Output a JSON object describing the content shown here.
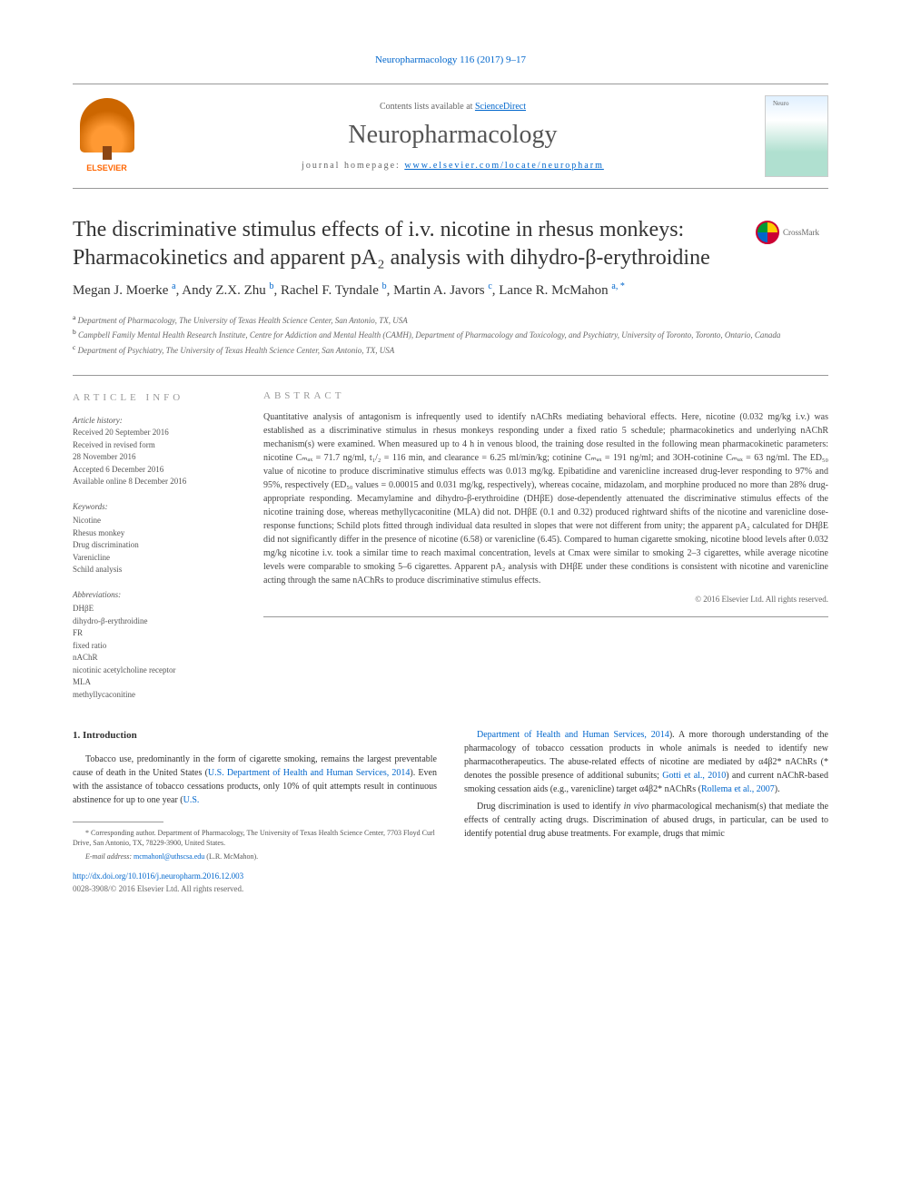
{
  "top_link": "Neuropharmacology 116 (2017) 9–17",
  "header": {
    "contents_text": "Contents lists available at ",
    "contents_link": "ScienceDirect",
    "journal_name": "Neuropharmacology",
    "homepage_prefix": "journal homepage: ",
    "homepage_url": "www.elsevier.com/locate/neuropharm",
    "elsevier_label": "ELSEVIER"
  },
  "crossmark": "CrossMark",
  "title": "The discriminative stimulus effects of i.v. nicotine in rhesus monkeys: Pharmacokinetics and apparent pA₂ analysis with dihydro-β-erythroidine",
  "authors_html": "Megan J. Moerke <sup>a</sup>, Andy Z.X. Zhu <sup>b</sup>, Rachel F. Tyndale <sup>b</sup>, Martin A. Javors <sup>c</sup>, Lance R. McMahon <sup>a, *</sup>",
  "affiliations": [
    {
      "sup": "a",
      "text": " Department of Pharmacology, The University of Texas Health Science Center, San Antonio, TX, USA"
    },
    {
      "sup": "b",
      "text": " Campbell Family Mental Health Research Institute, Centre for Addiction and Mental Health (CAMH), Department of Pharmacology and Toxicology, and Psychiatry, University of Toronto, Toronto, Ontario, Canada"
    },
    {
      "sup": "c",
      "text": " Department of Psychiatry, The University of Texas Health Science Center, San Antonio, TX, USA"
    }
  ],
  "article_info": {
    "label": "ARTICLE INFO",
    "history_label": "Article history:",
    "history": [
      "Received 20 September 2016",
      "Received in revised form",
      "28 November 2016",
      "Accepted 6 December 2016",
      "Available online 8 December 2016"
    ],
    "keywords_label": "Keywords:",
    "keywords": [
      "Nicotine",
      "Rhesus monkey",
      "Drug discrimination",
      "Varenicline",
      "Schild analysis"
    ],
    "abbrev_label": "Abbreviations:",
    "abbrevs": [
      "DHβE",
      "dihydro-β-erythroidine",
      "FR",
      "fixed ratio",
      "nAChR",
      "nicotinic acetylcholine receptor",
      "MLA",
      "methyllycaconitine"
    ]
  },
  "abstract": {
    "label": "ABSTRACT",
    "text": "Quantitative analysis of antagonism is infrequently used to identify nAChRs mediating behavioral effects. Here, nicotine (0.032 mg/kg i.v.) was established as a discriminative stimulus in rhesus monkeys responding under a fixed ratio 5 schedule; pharmacokinetics and underlying nAChR mechanism(s) were examined. When measured up to 4 h in venous blood, the training dose resulted in the following mean pharmacokinetic parameters: nicotine Cₘₐₓ = 71.7 ng/ml, t₁/₂ = 116 min, and clearance = 6.25 ml/min/kg; cotinine Cₘₐₓ = 191 ng/ml; and 3OH-cotinine Cₘₐₓ = 63 ng/ml. The ED₅₀ value of nicotine to produce discriminative stimulus effects was 0.013 mg/kg. Epibatidine and varenicline increased drug-lever responding to 97% and 95%, respectively (ED₅₀ values = 0.00015 and 0.031 mg/kg, respectively), whereas cocaine, midazolam, and morphine produced no more than 28% drug-appropriate responding. Mecamylamine and dihydro-β-erythroidine (DHβE) dose-dependently attenuated the discriminative stimulus effects of the nicotine training dose, whereas methyllycaconitine (MLA) did not. DHβE (0.1 and 0.32) produced rightward shifts of the nicotine and varenicline dose-response functions; Schild plots fitted through individual data resulted in slopes that were not different from unity; the apparent pA₂ calculated for DHβE did not significantly differ in the presence of nicotine (6.58) or varenicline (6.45). Compared to human cigarette smoking, nicotine blood levels after 0.032 mg/kg nicotine i.v. took a similar time to reach maximal concentration, levels at Cmax were similar to smoking 2–3 cigarettes, while average nicotine levels were comparable to smoking 5–6 cigarettes. Apparent pA₂ analysis with DHβE under these conditions is consistent with nicotine and varenicline acting through the same nAChRs to produce discriminative stimulus effects.",
    "copyright": "© 2016 Elsevier Ltd. All rights reserved."
  },
  "body": {
    "intro_heading": "1. Introduction",
    "left_paras": [
      "Tobacco use, predominantly in the form of cigarette smoking, remains the largest preventable cause of death in the United States (U.S. Department of Health and Human Services, 2014). Even with the assistance of tobacco cessations products, only 10% of quit attempts result in continuous abstinence for up to one year (U.S."
    ],
    "right_paras": [
      "Department of Health and Human Services, 2014). A more thorough understanding of the pharmacology of tobacco cessation products in whole animals is needed to identify new pharmacotherapeutics. The abuse-related effects of nicotine are mediated by α4β2* nAChRs (* denotes the possible presence of additional subunits; Gotti et al., 2010) and current nAChR-based smoking cessation aids (e.g., varenicline) target α4β2* nAChRs (Rollema et al., 2007).",
      "Drug discrimination is used to identify in vivo pharmacological mechanism(s) that mediate the effects of centrally acting drugs. Discrimination of abused drugs, in particular, can be used to identify potential drug abuse treatments. For example, drugs that mimic"
    ]
  },
  "footnote": {
    "corr": "* Corresponding author. Department of Pharmacology, The University of Texas Health Science Center, 7703 Floyd Curl Drive, San Antonio, TX, 78229-3900, United States.",
    "email_label": "E-mail address: ",
    "email": "mcmahonl@uthscsa.edu",
    "email_suffix": " (L.R. McMahon)."
  },
  "footer": {
    "doi": "http://dx.doi.org/10.1016/j.neuropharm.2016.12.003",
    "issn": "0028-3908/© 2016 Elsevier Ltd. All rights reserved."
  },
  "colors": {
    "link": "#0066cc",
    "text": "#333333",
    "muted": "#666666",
    "border": "#999999",
    "elsevier_orange": "#ff6600"
  }
}
